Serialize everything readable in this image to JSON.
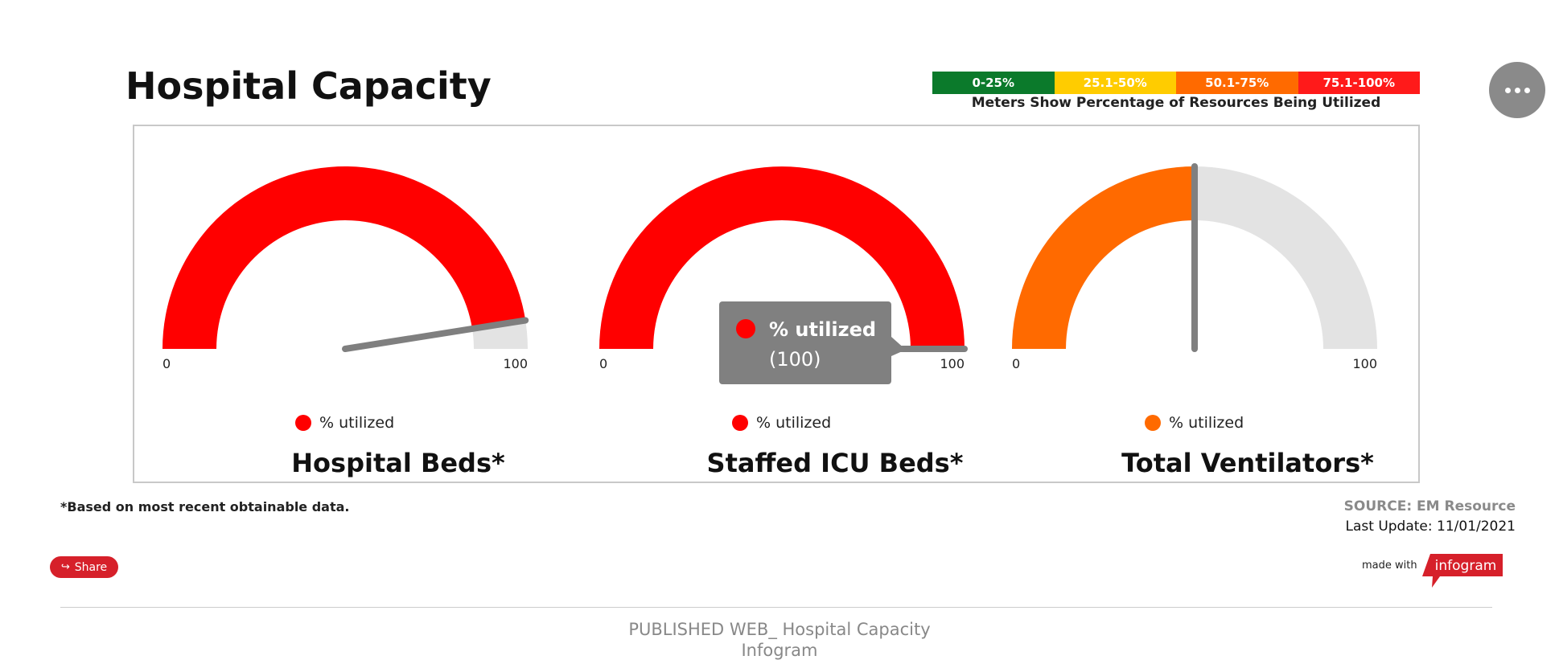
{
  "title": "Hospital Capacity",
  "legend": {
    "ranges": [
      {
        "label": "0-25%",
        "color": "#0b7a2b"
      },
      {
        "label": "25.1-50%",
        "color": "#ffcc00"
      },
      {
        "label": "50.1-75%",
        "color": "#ff6a00"
      },
      {
        "label": "75.1-100%",
        "color": "#ff1a1a"
      }
    ],
    "caption": "Meters Show Percentage of Resources Being Utilized"
  },
  "chart_data": [
    {
      "type": "gauge",
      "title": "Hospital Beds*",
      "series": [
        {
          "name": "% utilized",
          "value": 95
        }
      ],
      "color": "#ff0000",
      "min": 0,
      "max": 100,
      "min_label": "0",
      "max_label": "100"
    },
    {
      "type": "gauge",
      "title": "Staffed ICU Beds*",
      "series": [
        {
          "name": "% utilized",
          "value": 100
        }
      ],
      "color": "#ff0000",
      "min": 0,
      "max": 100,
      "min_label": "0",
      "max_label": "100",
      "tooltip": {
        "series_name": "% utilized",
        "value_text": "(100)"
      }
    },
    {
      "type": "gauge",
      "title": "Total Ventilators*",
      "series": [
        {
          "name": "% utilized",
          "value": 50
        }
      ],
      "color": "#ff6a00",
      "min": 0,
      "max": 100,
      "min_label": "0",
      "max_label": "100"
    }
  ],
  "footnote": "*Based on most recent obtainable data.",
  "source": "SOURCE: EM Resource",
  "last_update": "Last Update: 11/01/2021",
  "share_label": "Share",
  "made_with": "made with",
  "brand": "infogram",
  "page_caption": [
    "PUBLISHED WEB_ Hospital Capacity",
    "Infogram"
  ]
}
